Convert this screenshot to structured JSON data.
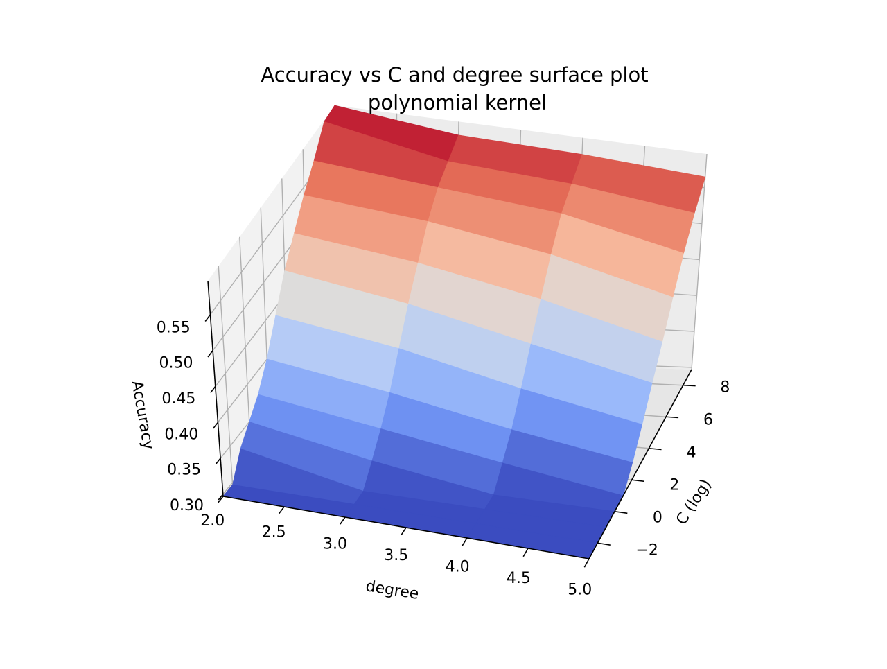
{
  "chart_data": {
    "type": "surface",
    "title": "Accuracy vs C and degree surface plot",
    "subtitle": "polynomial kernel",
    "xlabel": "degree",
    "ylabel": "C (log)",
    "zlabel": "Accuracy",
    "colormap": "coolwarm",
    "colormap_stops": [
      "#3b4cc0",
      "#6f92f3",
      "#aac7fd",
      "#dddcdc",
      "#f7b89c",
      "#e7745b",
      "#b40426"
    ],
    "pane_color": "#f2f2f2",
    "grid": true,
    "x_ticks": [
      "5.0",
      "4.5",
      "4.0",
      "3.5",
      "3.0",
      "2.5",
      "2.0"
    ],
    "y_ticks": [
      "−2",
      "0",
      "2",
      "4",
      "6",
      "8"
    ],
    "z_ticks": [
      "0.30",
      "0.35",
      "0.40",
      "0.45",
      "0.50",
      "0.55"
    ],
    "xlim": [
      2.0,
      5.0
    ],
    "ylim": [
      -3,
      9
    ],
    "zlim": [
      0.297,
      0.597
    ],
    "degree": [
      2,
      3,
      4,
      5
    ],
    "C_log": [
      -3,
      -2,
      -1,
      0,
      1,
      2,
      3,
      4,
      5,
      6,
      7,
      8,
      9
    ],
    "accuracy": [
      [
        0.297,
        0.297,
        0.33,
        0.35,
        0.37,
        0.4,
        0.44,
        0.48,
        0.51,
        0.54,
        0.565,
        0.595,
        0.597
      ],
      [
        0.297,
        0.297,
        0.297,
        0.32,
        0.345,
        0.375,
        0.415,
        0.455,
        0.49,
        0.525,
        0.55,
        0.565,
        0.58
      ],
      [
        0.297,
        0.297,
        0.297,
        0.297,
        0.32,
        0.345,
        0.38,
        0.42,
        0.46,
        0.5,
        0.535,
        0.555,
        0.575
      ],
      [
        0.297,
        0.297,
        0.297,
        0.297,
        0.297,
        0.32,
        0.35,
        0.385,
        0.42,
        0.46,
        0.5,
        0.535,
        0.565
      ]
    ]
  }
}
